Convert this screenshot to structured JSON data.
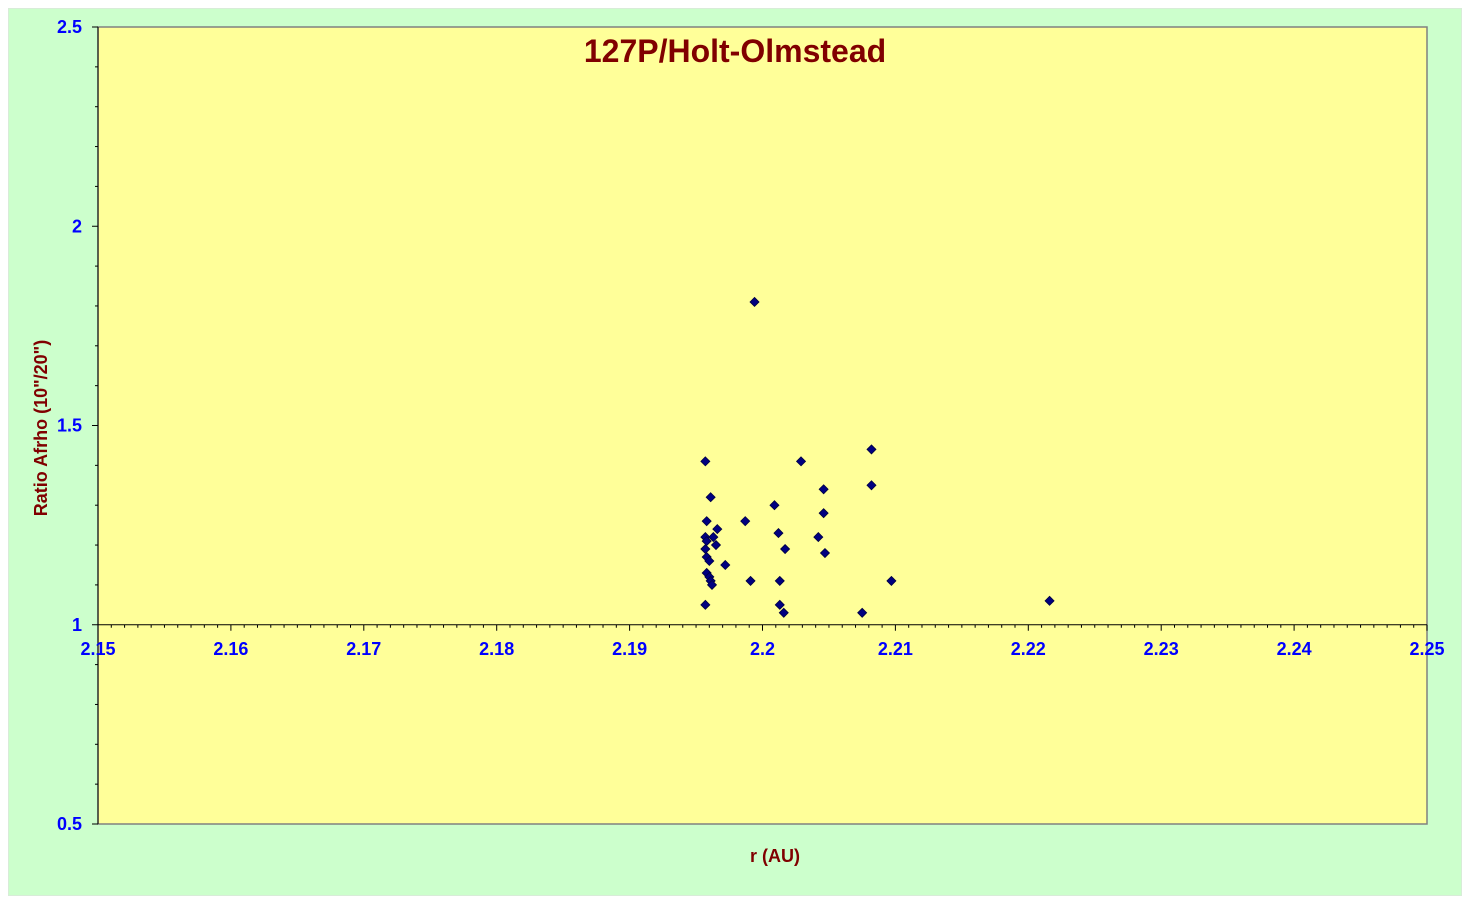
{
  "chart_data": {
    "type": "scatter",
    "title": "127P/Holt-Olmstead",
    "xlabel": "r (AU)",
    "ylabel": "Ratio Afrho (10\"/20\")",
    "xlim": [
      2.15,
      2.25
    ],
    "ylim": [
      0.5,
      2.5
    ],
    "x_ticks": [
      "2.15",
      "2.16",
      "2.17",
      "2.18",
      "2.19",
      "2.2",
      "2.21",
      "2.22",
      "2.23",
      "2.24",
      "2.25"
    ],
    "y_ticks": [
      "0.5",
      "1",
      "1.5",
      "2",
      "2.5"
    ],
    "x_axis_crosses_at": 1,
    "grid": false,
    "legend": "none",
    "colors": {
      "plot_background": "#ffff99",
      "chart_background": "#ccffcc",
      "marker": "#000080",
      "title": "#800000",
      "tick_labels": "#0000ff"
    },
    "series": [
      {
        "marker": "diamond",
        "points": [
          [
            2.1957,
            1.41
          ],
          [
            2.1958,
            1.26
          ],
          [
            2.1957,
            1.22
          ],
          [
            2.1958,
            1.21
          ],
          [
            2.1957,
            1.19
          ],
          [
            2.1958,
            1.17
          ],
          [
            2.196,
            1.16
          ],
          [
            2.1957,
            1.05
          ],
          [
            2.1958,
            1.13
          ],
          [
            2.196,
            1.12
          ],
          [
            2.1961,
            1.11
          ],
          [
            2.1962,
            1.1
          ],
          [
            2.1961,
            1.32
          ],
          [
            2.1963,
            1.22
          ],
          [
            2.1965,
            1.2
          ],
          [
            2.1966,
            1.24
          ],
          [
            2.1972,
            1.15
          ],
          [
            2.1987,
            1.26
          ],
          [
            2.1991,
            1.11
          ],
          [
            2.1994,
            1.81
          ],
          [
            2.2009,
            1.3
          ],
          [
            2.2012,
            1.23
          ],
          [
            2.2013,
            1.11
          ],
          [
            2.2013,
            1.05
          ],
          [
            2.2016,
            1.03
          ],
          [
            2.2017,
            1.19
          ],
          [
            2.2029,
            1.41
          ],
          [
            2.2042,
            1.22
          ],
          [
            2.2046,
            1.34
          ],
          [
            2.2046,
            1.28
          ],
          [
            2.2047,
            1.18
          ],
          [
            2.2075,
            1.03
          ],
          [
            2.2082,
            1.44
          ],
          [
            2.2082,
            1.35
          ],
          [
            2.2097,
            1.11
          ],
          [
            2.2216,
            1.06
          ]
        ]
      }
    ]
  }
}
